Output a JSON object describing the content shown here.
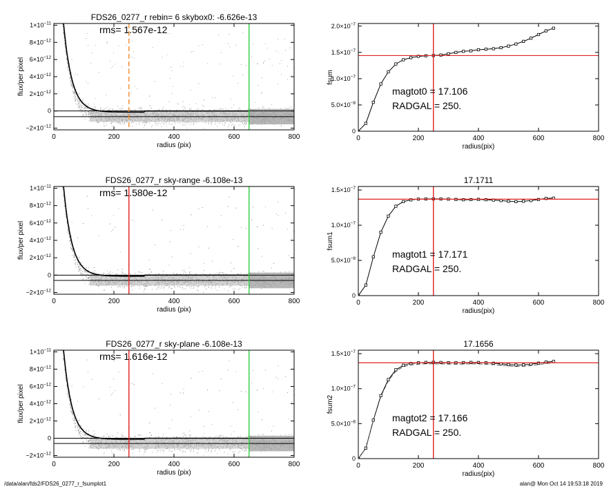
{
  "chart_data": [
    {
      "type": "scatter",
      "title": "FDS26_0277_r rebin= 6    skybox0: -6.626e-13",
      "annotation": "rms= 1.567e-12",
      "xlabel": "radius (pix)",
      "ylabel": "flux/per pixel",
      "xlim": [
        0,
        800
      ],
      "ylim": [
        -2.2e-12,
        1.02e-11
      ],
      "xticks": [
        "0",
        "200",
        "400",
        "600",
        "800"
      ],
      "yticks": [
        {
          "value": -2e-12,
          "label": "−2×10",
          "exp": "−12"
        },
        {
          "value": 0,
          "label": "0",
          "exp": ""
        },
        {
          "value": 2e-12,
          "label": "2×10",
          "exp": "−12"
        },
        {
          "value": 4e-12,
          "label": "4×10",
          "exp": "−12"
        },
        {
          "value": 6e-12,
          "label": "6×10",
          "exp": "−12"
        },
        {
          "value": 8e-12,
          "label": "8×10",
          "exp": "−12"
        },
        {
          "value": 1e-11,
          "label": "1×10",
          "exp": "−11"
        }
      ],
      "profile_scale": 1.12e-11,
      "profile_length": 28,
      "sky_level": -6.626e-13,
      "vlines": [
        {
          "x": 250,
          "color": "#f28c28",
          "style": "dashed"
        },
        {
          "x": 650,
          "color": "#2ecc40",
          "style": "solid"
        }
      ],
      "hlines": [
        {
          "y": 0,
          "color": "#000000"
        },
        {
          "y": -6.626e-13,
          "color": "#000000"
        }
      ]
    },
    {
      "type": "line",
      "xlabel": "radius(pix)",
      "ylabel": "fsum",
      "xlim": [
        0,
        800
      ],
      "ylim": [
        0,
        2.05e-07
      ],
      "xticks": [
        "0",
        "200",
        "400",
        "600",
        "800"
      ],
      "yticks": [
        {
          "value": 0,
          "label": "0",
          "exp": ""
        },
        {
          "value": 5e-08,
          "label": "5.0×10",
          "exp": "−8"
        },
        {
          "value": 1e-07,
          "label": "1.0×10",
          "exp": "−7"
        },
        {
          "value": 1.5e-07,
          "label": "1.5×10",
          "exp": "−7"
        },
        {
          "value": 2e-07,
          "label": "2.0×10",
          "exp": "−7"
        }
      ],
      "annotations": [
        "magtot0 =  17.106",
        "RADGAL =    250."
      ],
      "x": [
        0,
        25,
        50,
        75,
        100,
        125,
        150,
        175,
        200,
        225,
        250,
        275,
        300,
        325,
        350,
        375,
        400,
        425,
        450,
        475,
        500,
        525,
        550,
        575,
        600,
        625,
        650
      ],
      "y": [
        0,
        1.5e-08,
        5.5e-08,
        9e-08,
        1.13e-07,
        1.28e-07,
        1.36e-07,
        1.4e-07,
        1.425e-07,
        1.435e-07,
        1.44e-07,
        1.45e-07,
        1.475e-07,
        1.5e-07,
        1.52e-07,
        1.53e-07,
        1.55e-07,
        1.56e-07,
        1.57e-07,
        1.59e-07,
        1.62e-07,
        1.66e-07,
        1.71e-07,
        1.77e-07,
        1.84e-07,
        1.91e-07,
        1.96e-07
      ],
      "hline": {
        "y": 1.44e-07,
        "color": "#e02020"
      },
      "vline": {
        "x": 250,
        "color": "#e02020"
      }
    },
    {
      "type": "scatter",
      "title": "FDS26_0277_r sky-range -6.108e-13",
      "annotation": "rms= 1.580e-12",
      "xlabel": "radius (pix)",
      "ylabel": "flux/per pixel",
      "xlim": [
        0,
        800
      ],
      "ylim": [
        -2.2e-12,
        1.02e-11
      ],
      "xticks": [
        "0",
        "200",
        "400",
        "600",
        "800"
      ],
      "yticks": [
        {
          "value": -2e-12,
          "label": "−2×10",
          "exp": "−12"
        },
        {
          "value": 0,
          "label": "0",
          "exp": ""
        },
        {
          "value": 2e-12,
          "label": "2×10",
          "exp": "−12"
        },
        {
          "value": 4e-12,
          "label": "4×10",
          "exp": "−12"
        },
        {
          "value": 6e-12,
          "label": "6×10",
          "exp": "−12"
        },
        {
          "value": 8e-12,
          "label": "8×10",
          "exp": "−12"
        },
        {
          "value": 1e-11,
          "label": "1×10",
          "exp": "−11"
        }
      ],
      "profile_scale": 1.12e-11,
      "profile_length": 28,
      "sky_level": -6.108e-13,
      "vlines": [
        {
          "x": 250,
          "color": "#e02020",
          "style": "solid"
        },
        {
          "x": 650,
          "color": "#2ecc40",
          "style": "solid"
        }
      ],
      "hlines": [
        {
          "y": 0,
          "color": "#000000"
        },
        {
          "y": -6.108e-13,
          "color": "#000000"
        }
      ]
    },
    {
      "type": "line",
      "title": "17.1711",
      "xlabel": "radius(pix)",
      "ylabel": "fsum1",
      "xlim": [
        0,
        800
      ],
      "ylim": [
        0,
        1.55e-07
      ],
      "xticks": [
        "0",
        "200",
        "400",
        "600",
        "800"
      ],
      "yticks": [
        {
          "value": 0,
          "label": "0",
          "exp": ""
        },
        {
          "value": 5e-08,
          "label": "5.0×10",
          "exp": "−8"
        },
        {
          "value": 1e-07,
          "label": "1.0×10",
          "exp": "−7"
        },
        {
          "value": 1.5e-07,
          "label": "1.5×10",
          "exp": "−7"
        }
      ],
      "annotations": [
        "magtot1 =  17.171",
        "RADGAL =    250."
      ],
      "x": [
        0,
        25,
        50,
        75,
        100,
        125,
        150,
        175,
        200,
        225,
        250,
        275,
        300,
        325,
        350,
        375,
        400,
        425,
        450,
        475,
        500,
        525,
        550,
        575,
        600,
        625,
        650
      ],
      "y": [
        0,
        1.5e-08,
        5.5e-08,
        9e-08,
        1.13e-07,
        1.27e-07,
        1.335e-07,
        1.36e-07,
        1.37e-07,
        1.372e-07,
        1.374e-07,
        1.372e-07,
        1.37e-07,
        1.366e-07,
        1.362e-07,
        1.364e-07,
        1.367e-07,
        1.362e-07,
        1.357e-07,
        1.35e-07,
        1.34e-07,
        1.335e-07,
        1.34e-07,
        1.35e-07,
        1.365e-07,
        1.38e-07,
        1.385e-07
      ],
      "hline": {
        "y": 1.37e-07,
        "color": "#e02020"
      },
      "vline": {
        "x": 250,
        "color": "#e02020"
      }
    },
    {
      "type": "scatter",
      "title": "FDS26_0277_r sky-plane -6.108e-13",
      "annotation": "rms= 1.616e-12",
      "xlabel": "radius (pix)",
      "ylabel": "flux/per pixel",
      "xlim": [
        0,
        800
      ],
      "ylim": [
        -2.2e-12,
        1.02e-11
      ],
      "xticks": [
        "0",
        "200",
        "400",
        "600",
        "800"
      ],
      "yticks": [
        {
          "value": -2e-12,
          "label": "−2×10",
          "exp": "−12"
        },
        {
          "value": 0,
          "label": "0",
          "exp": ""
        },
        {
          "value": 2e-12,
          "label": "2×10",
          "exp": "−12"
        },
        {
          "value": 4e-12,
          "label": "4×10",
          "exp": "−12"
        },
        {
          "value": 6e-12,
          "label": "6×10",
          "exp": "−12"
        },
        {
          "value": 8e-12,
          "label": "8×10",
          "exp": "−12"
        },
        {
          "value": 1e-11,
          "label": "1×10",
          "exp": "−11"
        }
      ],
      "profile_scale": 1.12e-11,
      "profile_length": 28,
      "sky_level": -6.108e-13,
      "vlines": [
        {
          "x": 250,
          "color": "#e02020",
          "style": "solid"
        },
        {
          "x": 650,
          "color": "#2ecc40",
          "style": "solid"
        }
      ],
      "hlines": [
        {
          "y": 0,
          "color": "#000000"
        },
        {
          "y": -6.108e-13,
          "color": "#000000"
        }
      ]
    },
    {
      "type": "line",
      "title": "17.1656",
      "xlabel": "radius(pix)",
      "ylabel": "fsum2",
      "xlim": [
        0,
        800
      ],
      "ylim": [
        0,
        1.55e-07
      ],
      "xticks": [
        "0",
        "200",
        "400",
        "600",
        "800"
      ],
      "yticks": [
        {
          "value": 0,
          "label": "0",
          "exp": ""
        },
        {
          "value": 5e-08,
          "label": "5.0×10",
          "exp": "−8"
        },
        {
          "value": 1e-07,
          "label": "1.0×10",
          "exp": "−7"
        },
        {
          "value": 1.5e-07,
          "label": "1.5×10",
          "exp": "−7"
        }
      ],
      "annotations": [
        "magtot2 =  17.166",
        "RADGAL =    250."
      ],
      "x": [
        0,
        25,
        50,
        75,
        100,
        125,
        150,
        175,
        200,
        225,
        250,
        275,
        300,
        325,
        350,
        375,
        400,
        425,
        450,
        475,
        500,
        525,
        550,
        575,
        600,
        625,
        650
      ],
      "y": [
        0,
        1.5e-08,
        5.5e-08,
        9e-08,
        1.13e-07,
        1.27e-07,
        1.335e-07,
        1.36e-07,
        1.37e-07,
        1.375e-07,
        1.376e-07,
        1.374e-07,
        1.372e-07,
        1.37e-07,
        1.372e-07,
        1.375e-07,
        1.374e-07,
        1.37e-07,
        1.363e-07,
        1.355e-07,
        1.345e-07,
        1.338e-07,
        1.34e-07,
        1.35e-07,
        1.365e-07,
        1.38e-07,
        1.39e-07
      ],
      "hline": {
        "y": 1.37e-07,
        "color": "#e02020"
      },
      "vline": {
        "x": 250,
        "color": "#e02020"
      }
    }
  ],
  "footer": {
    "left": "/data/alan/fds2/FDS26_0277_r_fsumplot1",
    "right": "alan@  Mon Oct 14 19:53:18 2019"
  }
}
